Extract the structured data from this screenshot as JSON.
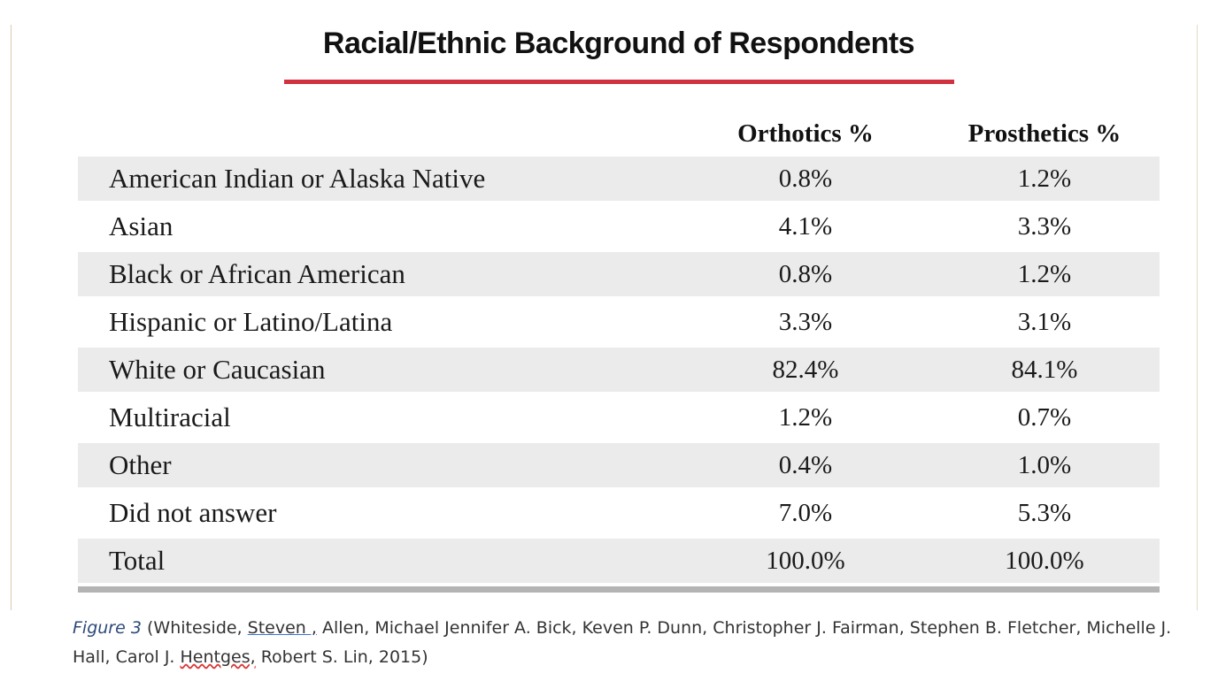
{
  "title": "Racial/Ethnic Background of Respondents",
  "colors": {
    "title_rule": "#d2313f",
    "row_shade": "#ebebeb",
    "bottom_rule": "#b4b4b4"
  },
  "columns": {
    "orthotics": "Orthotics %",
    "prosthetics": "Prosthetics %"
  },
  "rows": [
    {
      "label": "American Indian or Alaska Native",
      "orthotics": "0.8%",
      "prosthetics": "1.2%"
    },
    {
      "label": "Asian",
      "orthotics": "4.1%",
      "prosthetics": "3.3%"
    },
    {
      "label": "Black or African American",
      "orthotics": "0.8%",
      "prosthetics": "1.2%"
    },
    {
      "label": "Hispanic or Latino/Latina",
      "orthotics": "3.3%",
      "prosthetics": "3.1%"
    },
    {
      "label": "White or Caucasian",
      "orthotics": "82.4%",
      "prosthetics": "84.1%"
    },
    {
      "label": "Multiracial",
      "orthotics": "1.2%",
      "prosthetics": "0.7%"
    },
    {
      "label": "Other",
      "orthotics": "0.4%",
      "prosthetics": "1.0%"
    },
    {
      "label": "Did not answer",
      "orthotics": "7.0%",
      "prosthetics": "5.3%"
    },
    {
      "label": "Total",
      "orthotics": "100.0%",
      "prosthetics": "100.0%"
    }
  ],
  "caption": {
    "figure_label": "Figure 3",
    "part1": " (Whiteside, ",
    "steven": "Steven ,",
    "part2": " Allen, Michael Jennifer A. Bick, Keven P. Dunn, Christopher J. Fairman, Stephen B. Fletcher, Michelle J. Hall, Carol J. ",
    "hentges": "Hentges,",
    "part3": " Robert S. Lin, 2015)"
  }
}
